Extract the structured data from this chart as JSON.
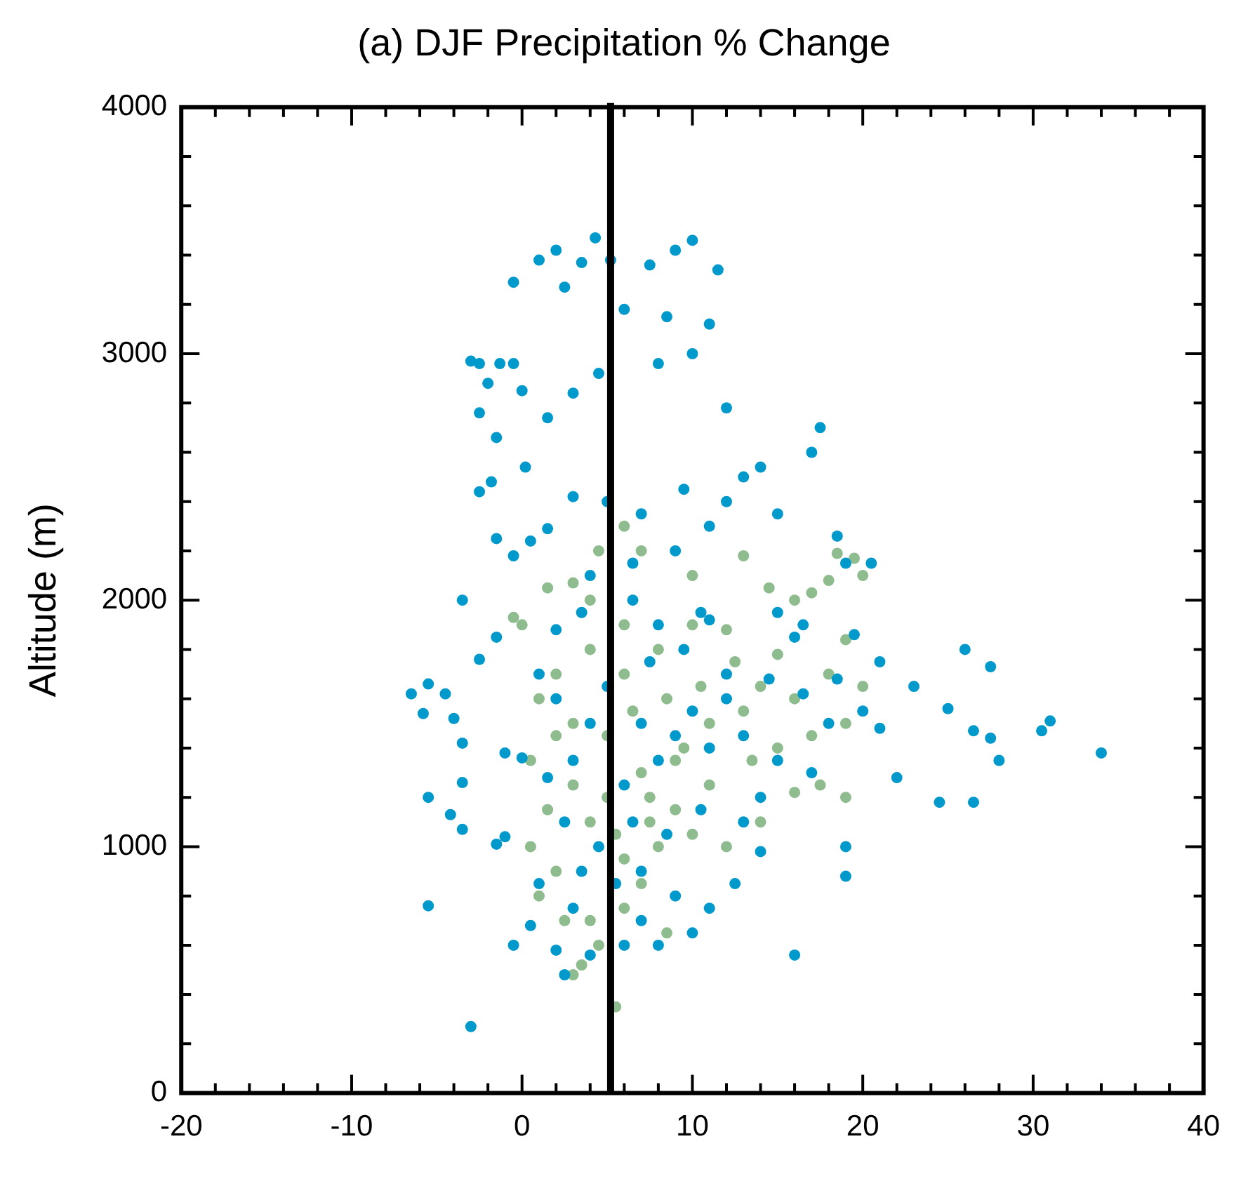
{
  "chart_data": {
    "type": "scatter",
    "title": "(a) DJF Precipitation % Change",
    "ylabel": "Altitude (m)",
    "xlim": [
      -20,
      40
    ],
    "ylim": [
      0,
      4000
    ],
    "xticks": [
      -20,
      {
        "value": -18,
        "label": null
      },
      {
        "value": -16,
        "label": null
      },
      {
        "value": -14,
        "label": null
      },
      {
        "value": -12,
        "label": null
      },
      -10,
      {
        "value": -8,
        "label": null
      },
      {
        "value": -6,
        "label": null
      },
      {
        "value": -4,
        "label": null
      },
      {
        "value": -2,
        "label": null
      },
      0,
      {
        "value": 2,
        "label": null
      },
      {
        "value": 4,
        "label": null
      },
      {
        "value": 6,
        "label": null
      },
      {
        "value": 8,
        "label": null
      },
      10,
      {
        "value": 12,
        "label": null
      },
      {
        "value": 14,
        "label": null
      },
      {
        "value": 16,
        "label": null
      },
      {
        "value": 18,
        "label": null
      },
      20,
      {
        "value": 22,
        "label": null
      },
      {
        "value": 24,
        "label": null
      },
      {
        "value": 26,
        "label": null
      },
      {
        "value": 28,
        "label": null
      },
      30,
      {
        "value": 32,
        "label": null
      },
      {
        "value": 34,
        "label": null
      },
      {
        "value": 36,
        "label": null
      },
      {
        "value": 38,
        "label": null
      },
      40
    ],
    "yticks": [
      0,
      {
        "value": 200,
        "label": null
      },
      {
        "value": 400,
        "label": null
      },
      {
        "value": 600,
        "label": null
      },
      {
        "value": 800,
        "label": null
      },
      1000,
      {
        "value": 1200,
        "label": null
      },
      {
        "value": 1400,
        "label": null
      },
      {
        "value": 1600,
        "label": null
      },
      {
        "value": 1800,
        "label": null
      },
      2000,
      {
        "value": 2200,
        "label": null
      },
      {
        "value": 2400,
        "label": null
      },
      {
        "value": 2600,
        "label": null
      },
      {
        "value": 2800,
        "label": null
      },
      3000,
      {
        "value": 3200,
        "label": null
      },
      {
        "value": 3400,
        "label": null
      },
      {
        "value": 3600,
        "label": null
      },
      {
        "value": 3800,
        "label": null
      },
      4000
    ],
    "grid": false,
    "legend": false,
    "marker": "circle",
    "ref_lines": [
      {
        "axis": "x",
        "value": 5.2,
        "color": "#000000",
        "line_style": "solid"
      }
    ],
    "series": [
      {
        "color": "#0099cc",
        "x": [
          -3,
          -5.5,
          -6.5,
          -5.5,
          -5.8,
          -4.5,
          -4,
          -3.5,
          -3.5,
          -5.5,
          -4.2,
          -3.5,
          -1.5,
          -1,
          -0.5,
          0.5,
          1,
          -2.5,
          -1,
          0,
          4.3,
          2,
          1,
          -0.5,
          3.5,
          5.2,
          9,
          10,
          7.5,
          11.5,
          2.5,
          -3,
          -2.5,
          -1.3,
          -2,
          0,
          -0.5,
          -2.5,
          -1.5,
          0.2,
          -1.8,
          -2.5,
          1.5,
          3,
          4.5,
          8,
          10,
          11,
          8.5,
          6,
          12,
          17.5,
          17,
          14,
          13,
          12,
          15,
          0.5,
          -1.5,
          -3.5,
          -0.5,
          1.5,
          3,
          5,
          7,
          9.5,
          11,
          4,
          6.5,
          9,
          18.5,
          19,
          20.5,
          15,
          19.5,
          21,
          16.5,
          11,
          8,
          2,
          -1.5,
          26,
          27.5,
          23,
          25,
          27.5,
          30.5,
          31,
          34,
          28,
          26.5,
          24.5,
          26.5,
          22,
          21,
          19,
          19,
          16,
          14,
          16.5,
          12,
          10,
          9,
          8,
          7,
          11,
          13,
          6,
          4,
          3,
          2.5,
          1.5,
          4.5,
          5.5,
          7,
          9,
          11,
          12.5,
          14,
          13,
          10.5,
          8.5,
          6.5,
          3,
          2,
          2.5,
          4,
          6,
          8,
          10,
          7,
          3.5,
          5,
          7.5,
          9.5,
          12,
          14.5,
          15,
          17,
          18,
          20,
          18.5,
          16,
          10.5,
          6.5,
          3.5,
          1,
          2
        ],
        "values": [
          270,
          760,
          1620,
          1660,
          1540,
          1620,
          1520,
          1420,
          1260,
          1200,
          1130,
          1070,
          1010,
          1040,
          600,
          680,
          850,
          1760,
          1380,
          1360,
          3470,
          3420,
          3380,
          3290,
          3370,
          3380,
          3420,
          3460,
          3360,
          3340,
          3270,
          2970,
          2960,
          2960,
          2880,
          2850,
          2960,
          2760,
          2660,
          2540,
          2480,
          2440,
          2740,
          2840,
          2920,
          2960,
          3000,
          3120,
          3150,
          3180,
          2780,
          2700,
          2600,
          2540,
          2500,
          2400,
          2350,
          2240,
          2250,
          2000,
          2180,
          2290,
          2420,
          2400,
          2350,
          2450,
          2300,
          2100,
          2150,
          2200,
          2260,
          2150,
          2150,
          1950,
          1860,
          1750,
          1900,
          1920,
          1900,
          1880,
          1850,
          1800,
          1730,
          1650,
          1560,
          1440,
          1470,
          1510,
          1380,
          1350,
          1470,
          1180,
          1180,
          1280,
          1480,
          1000,
          880,
          560,
          1200,
          1620,
          1700,
          1550,
          1450,
          1350,
          1500,
          1400,
          1450,
          1250,
          1500,
          1350,
          1100,
          1280,
          1000,
          850,
          900,
          800,
          750,
          850,
          980,
          1100,
          1150,
          1050,
          1100,
          750,
          580,
          480,
          560,
          600,
          600,
          650,
          700,
          900,
          1650,
          1750,
          1800,
          1600,
          1680,
          1350,
          1300,
          1500,
          1550,
          1680,
          1850,
          1950,
          2000,
          1950,
          1700,
          1600
        ]
      },
      {
        "color": "#8fbc8f",
        "x": [
          3,
          3.5,
          5.5,
          4.5,
          4,
          6,
          7,
          8.5,
          1,
          2,
          0.5,
          1.5,
          0.5,
          1,
          2,
          -0.5,
          0,
          1.5,
          3,
          4.5,
          6,
          7,
          10,
          13,
          14.5,
          16,
          18,
          19.5,
          18.5,
          17,
          20,
          19,
          15,
          12,
          10,
          8,
          6,
          4,
          3,
          5,
          7,
          9,
          11,
          13,
          15,
          17,
          19,
          19,
          17.5,
          16,
          14,
          12,
          10,
          8,
          6,
          4,
          3,
          2,
          5,
          6.5,
          8.5,
          10.5,
          12.5,
          14,
          16,
          18,
          20,
          11,
          9,
          7.5,
          4,
          6,
          5.5,
          2.5,
          7.5,
          9.5,
          13.5
        ],
        "values": [
          480,
          520,
          350,
          600,
          700,
          750,
          850,
          650,
          800,
          900,
          1000,
          1150,
          1350,
          1600,
          1700,
          1930,
          1900,
          2050,
          2070,
          2200,
          2300,
          2200,
          2100,
          2180,
          2050,
          2000,
          2080,
          2170,
          2190,
          2030,
          2100,
          1840,
          1780,
          1880,
          1900,
          1800,
          1700,
          1800,
          1500,
          1450,
          1300,
          1350,
          1500,
          1550,
          1400,
          1450,
          1500,
          1200,
          1250,
          1220,
          1100,
          1000,
          1050,
          1000,
          950,
          1100,
          1250,
          1450,
          1200,
          1550,
          1600,
          1650,
          1750,
          1650,
          1600,
          1700,
          1650,
          1250,
          1150,
          1100,
          2000,
          1900,
          1050,
          700,
          1200,
          1400,
          1350
        ]
      }
    ]
  }
}
